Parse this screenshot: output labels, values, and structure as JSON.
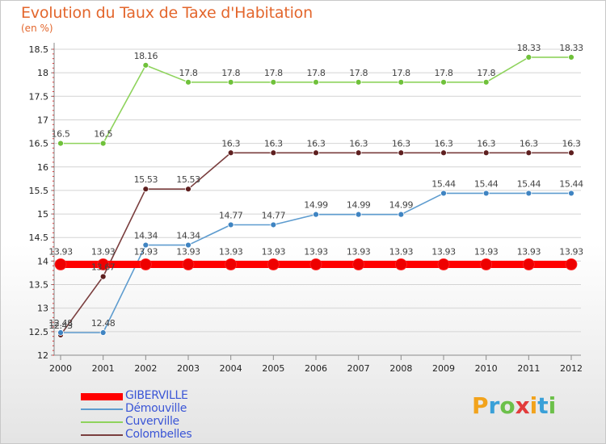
{
  "title": "Evolution du Taux de Taxe d'Habitation",
  "unit_label": "(en %)",
  "brand": "Proxiti",
  "colors": {
    "title": "#e3662c",
    "legend_text": "#3a55d6",
    "grid": "#d4d4d4",
    "axis": "#8a8a8a"
  },
  "chart_data": {
    "type": "line",
    "title": "Evolution du Taux de Taxe d'Habitation",
    "ylabel": "(en %)",
    "xlabel": "",
    "x": [
      "2000",
      "2001",
      "2002",
      "2003",
      "2004",
      "2005",
      "2006",
      "2007",
      "2008",
      "2009",
      "2010",
      "2011",
      "2012"
    ],
    "ylim": [
      12,
      18.5
    ],
    "yticks": [
      "12",
      "12.5",
      "13",
      "13.5",
      "14",
      "14.5",
      "15",
      "15.5",
      "16",
      "16.5",
      "17",
      "17.5",
      "18",
      "18.5"
    ],
    "grid": "horizontal",
    "legend_position": "bottom-left",
    "series": [
      {
        "name": "GIBERVILLE",
        "color": "#ff0000",
        "marker": "#ee0000",
        "values": [
          13.93,
          13.93,
          13.93,
          13.93,
          13.93,
          13.93,
          13.93,
          13.93,
          13.93,
          13.93,
          13.93,
          13.93,
          13.93
        ],
        "labels": [
          "13.93",
          "13.93",
          "13.93",
          "13.93",
          "13.93",
          "13.93",
          "13.93",
          "13.93",
          "13.93",
          "13.93",
          "13.93",
          "13.93",
          "13.93"
        ]
      },
      {
        "name": "Démouville",
        "color": "#5e9ccf",
        "marker": "#3f84c2",
        "values": [
          12.48,
          12.48,
          14.34,
          14.34,
          14.77,
          14.77,
          14.99,
          14.99,
          14.99,
          15.44,
          15.44,
          15.44,
          15.44
        ],
        "labels": [
          "12.48",
          "12.48",
          "14.34",
          "14.34",
          "14.77",
          "14.77",
          "14.99",
          "14.99",
          "14.99",
          "15.44",
          "15.44",
          "15.44",
          "15.44"
        ]
      },
      {
        "name": "Cuverville",
        "color": "#8ed35c",
        "marker": "#6fc13a",
        "values": [
          16.5,
          16.5,
          18.16,
          17.8,
          17.8,
          17.8,
          17.8,
          17.8,
          17.8,
          17.8,
          17.8,
          18.33,
          18.33
        ],
        "labels": [
          "16.5",
          "16.5",
          "18.16",
          "17.8",
          "17.8",
          "17.8",
          "17.8",
          "17.8",
          "17.8",
          "17.8",
          "17.8",
          "18.33",
          "18.33"
        ]
      },
      {
        "name": "Colombelles",
        "color": "#7a3e3e",
        "marker": "#5e1f1f",
        "values": [
          12.43,
          13.67,
          15.53,
          15.53,
          16.3,
          16.3,
          16.3,
          16.3,
          16.3,
          16.3,
          16.3,
          16.3,
          16.3
        ],
        "labels": [
          "12.43",
          "13.67",
          "15.53",
          "15.53",
          "16.3",
          "16.3",
          "16.3",
          "16.3",
          "16.3",
          "16.3",
          "16.3",
          "16.3",
          "16.3"
        ]
      }
    ]
  }
}
